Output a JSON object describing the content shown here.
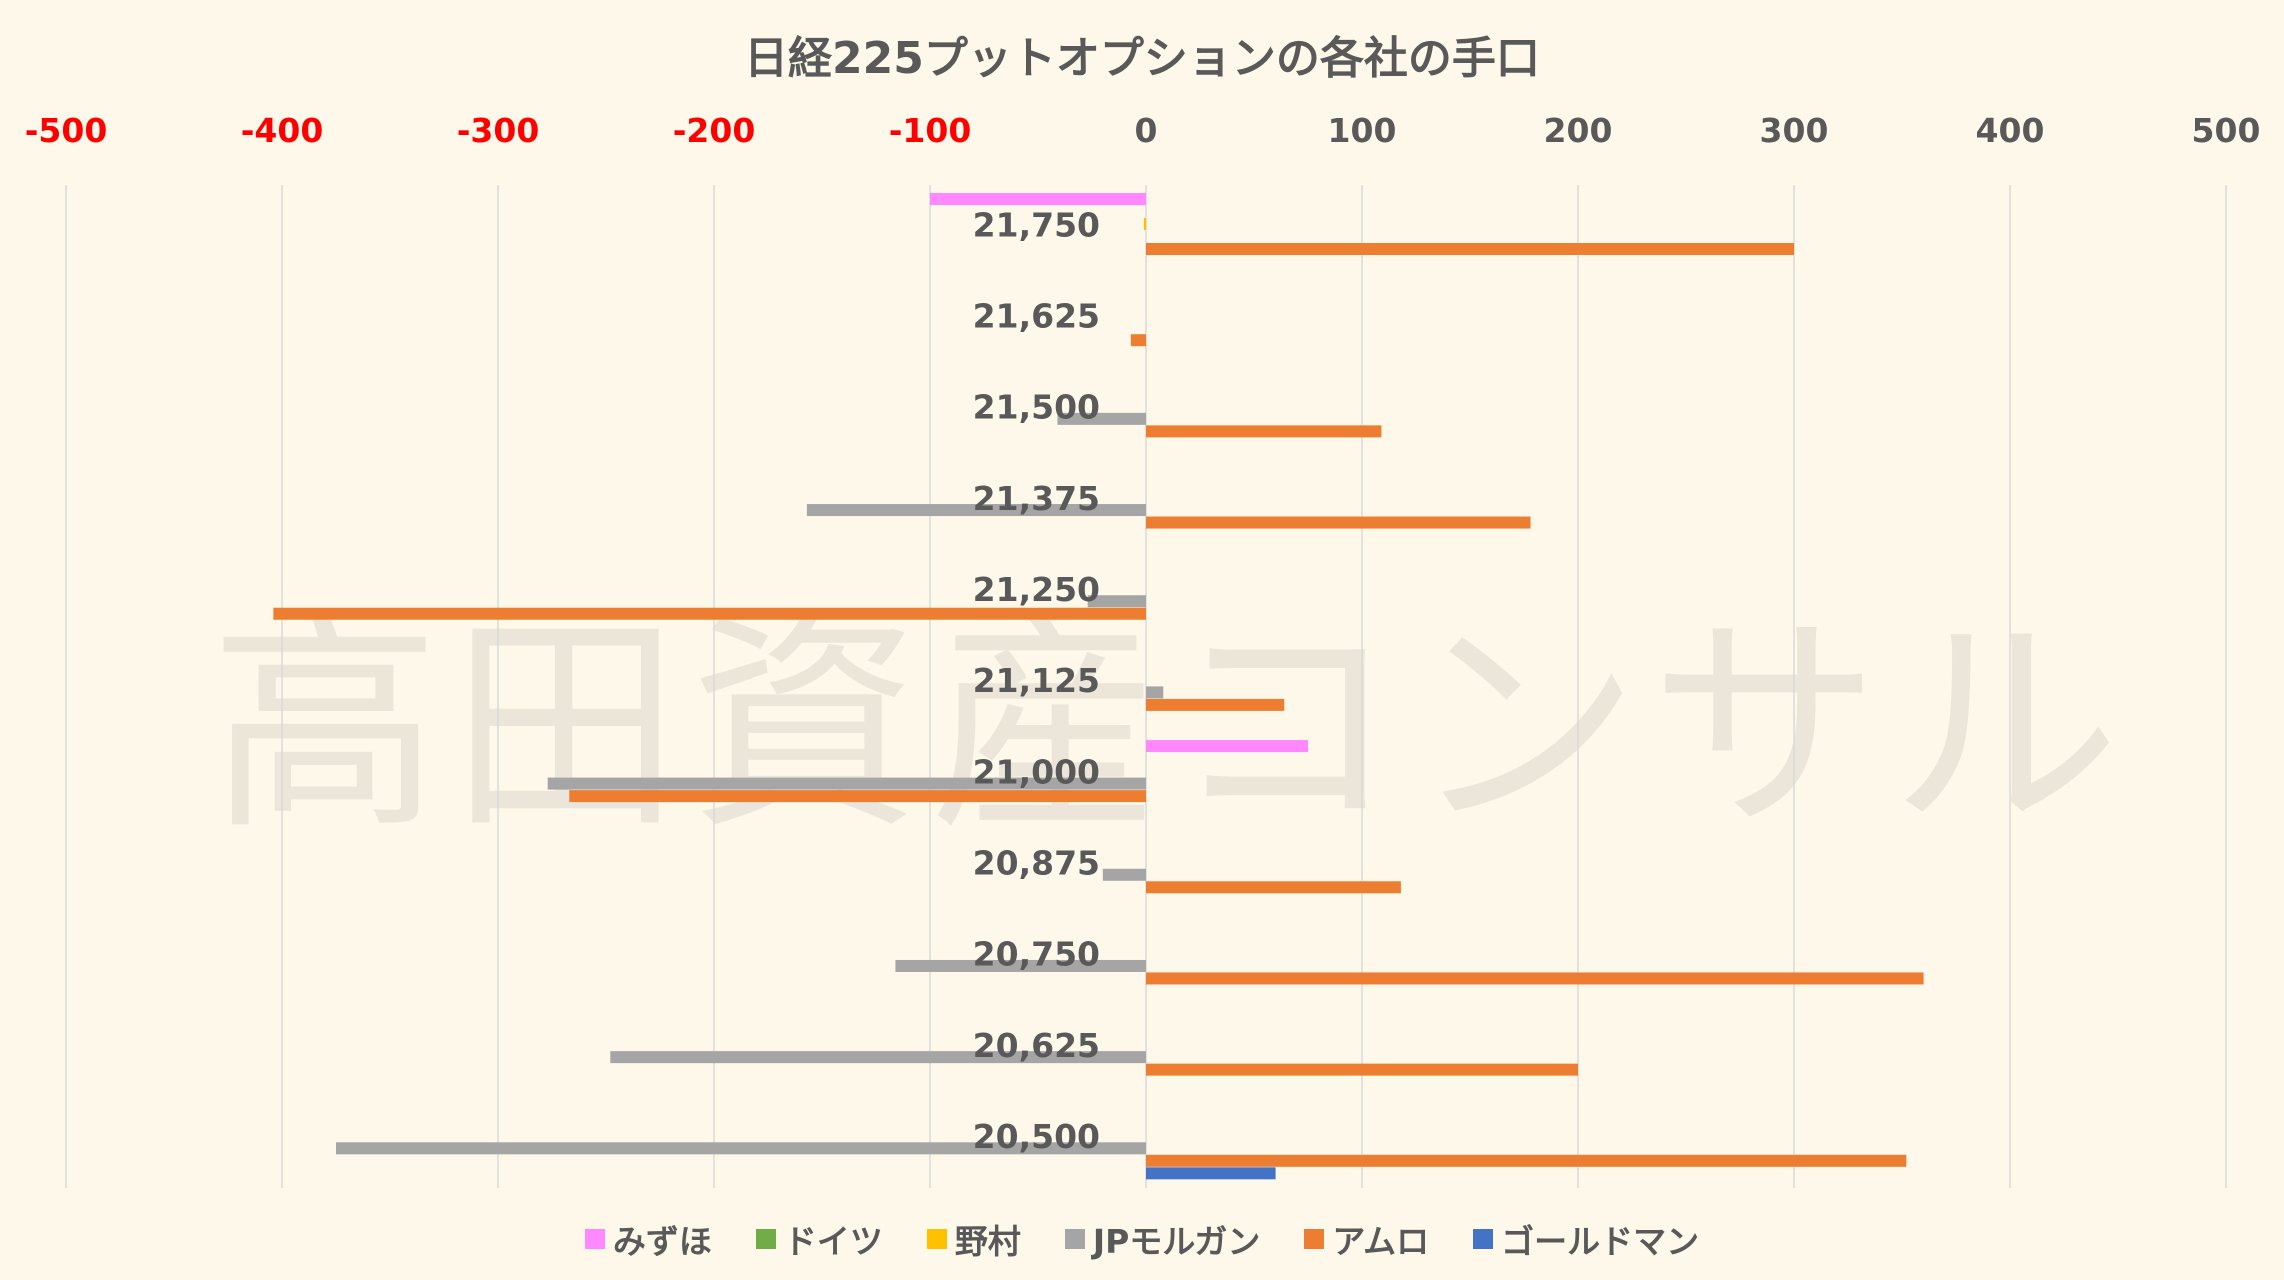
{
  "chart_data": {
    "type": "bar",
    "orientation": "horizontal",
    "title": "日経225プットオプションの各社の手口",
    "watermark": "高田資産コンサル",
    "xlim": [
      -500,
      500
    ],
    "xticks": [
      -500,
      -400,
      -300,
      -200,
      -100,
      0,
      100,
      200,
      300,
      400,
      500
    ],
    "xtick_labels": [
      "-500",
      "-400",
      "-300",
      "-200",
      "-100",
      "0",
      "100",
      "200",
      "300",
      "400",
      "500"
    ],
    "negative_tick_color": "#ff0000",
    "positive_tick_color": "#595959",
    "grid": true,
    "legend_position": "bottom",
    "categories": [
      "21,750",
      "21,625",
      "21,500",
      "21,375",
      "21,250",
      "21,125",
      "21,000",
      "20,875",
      "20,750",
      "20,625",
      "20,500"
    ],
    "series": [
      {
        "name": "みずほ",
        "color": "#ff87ff",
        "values": [
          -100,
          0,
          0,
          0,
          0,
          0,
          75,
          0,
          0,
          0,
          0
        ]
      },
      {
        "name": "ドイツ",
        "color": "#70ad47",
        "values": [
          0,
          0,
          0,
          0,
          0,
          0,
          0,
          0,
          0,
          0,
          0
        ]
      },
      {
        "name": "野村",
        "color": "#ffc000",
        "values": [
          -1,
          0,
          0,
          0,
          0,
          0,
          0,
          0,
          0,
          0,
          0
        ]
      },
      {
        "name": "JPモルガン",
        "color": "#a5a5a5",
        "values": [
          0,
          0,
          -41,
          -157,
          -27,
          8,
          -277,
          -20,
          -116,
          -248,
          -375
        ]
      },
      {
        "name": "アムロ",
        "color": "#ed7d31",
        "values": [
          300,
          -7,
          109,
          178,
          -404,
          64,
          -267,
          118,
          360,
          200,
          352
        ]
      },
      {
        "name": "ゴールドマン",
        "color": "#4472c4",
        "values": [
          0,
          0,
          0,
          0,
          0,
          0,
          0,
          0,
          0,
          0,
          60
        ]
      }
    ]
  }
}
